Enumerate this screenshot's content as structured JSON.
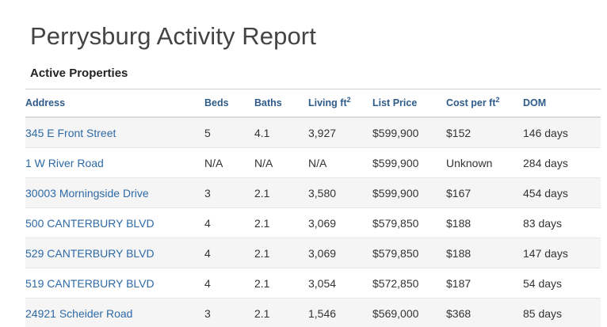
{
  "report": {
    "title": "Perrysburg Activity Report"
  },
  "active_properties": {
    "heading": "Active Properties",
    "columns": {
      "address": "Address",
      "beds": "Beds",
      "baths": "Baths",
      "living_area": "Living ft",
      "living_area_sup": "2",
      "list_price": "List Price",
      "cost_per_area": "Cost per ft",
      "cost_per_area_sup": "2",
      "dom": "DOM"
    },
    "rows": [
      {
        "address": "345 E Front Street",
        "beds": "5",
        "baths": "4.1",
        "living": "3,927",
        "price": "$599,900",
        "cost": "$152",
        "dom": "146 days"
      },
      {
        "address": "1 W River Road",
        "beds": "N/A",
        "baths": "N/A",
        "living": "N/A",
        "price": "$599,900",
        "cost": "Unknown",
        "dom": "284 days"
      },
      {
        "address": "30003 Morningside Drive",
        "beds": "3",
        "baths": "2.1",
        "living": "3,580",
        "price": "$599,900",
        "cost": "$167",
        "dom": "454 days"
      },
      {
        "address": "500 CANTERBURY BLVD",
        "beds": "4",
        "baths": "2.1",
        "living": "3,069",
        "price": "$579,850",
        "cost": "$188",
        "dom": "83 days"
      },
      {
        "address": "529 CANTERBURY BLVD",
        "beds": "4",
        "baths": "2.1",
        "living": "3,069",
        "price": "$579,850",
        "cost": "$188",
        "dom": "147 days"
      },
      {
        "address": "519 CANTERBURY BLVD",
        "beds": "4",
        "baths": "2.1",
        "living": "3,054",
        "price": "$572,850",
        "cost": "$187",
        "dom": "54 days"
      },
      {
        "address": "24921 Scheider Road",
        "beds": "3",
        "baths": "2.1",
        "living": "1,546",
        "price": "$569,000",
        "cost": "$368",
        "dom": "85 days"
      }
    ]
  },
  "colors": {
    "title_text": "#444444",
    "header_text": "#2e5b8a",
    "link_text": "#2e6aa6",
    "row_stripe": "#f5f5f5"
  }
}
